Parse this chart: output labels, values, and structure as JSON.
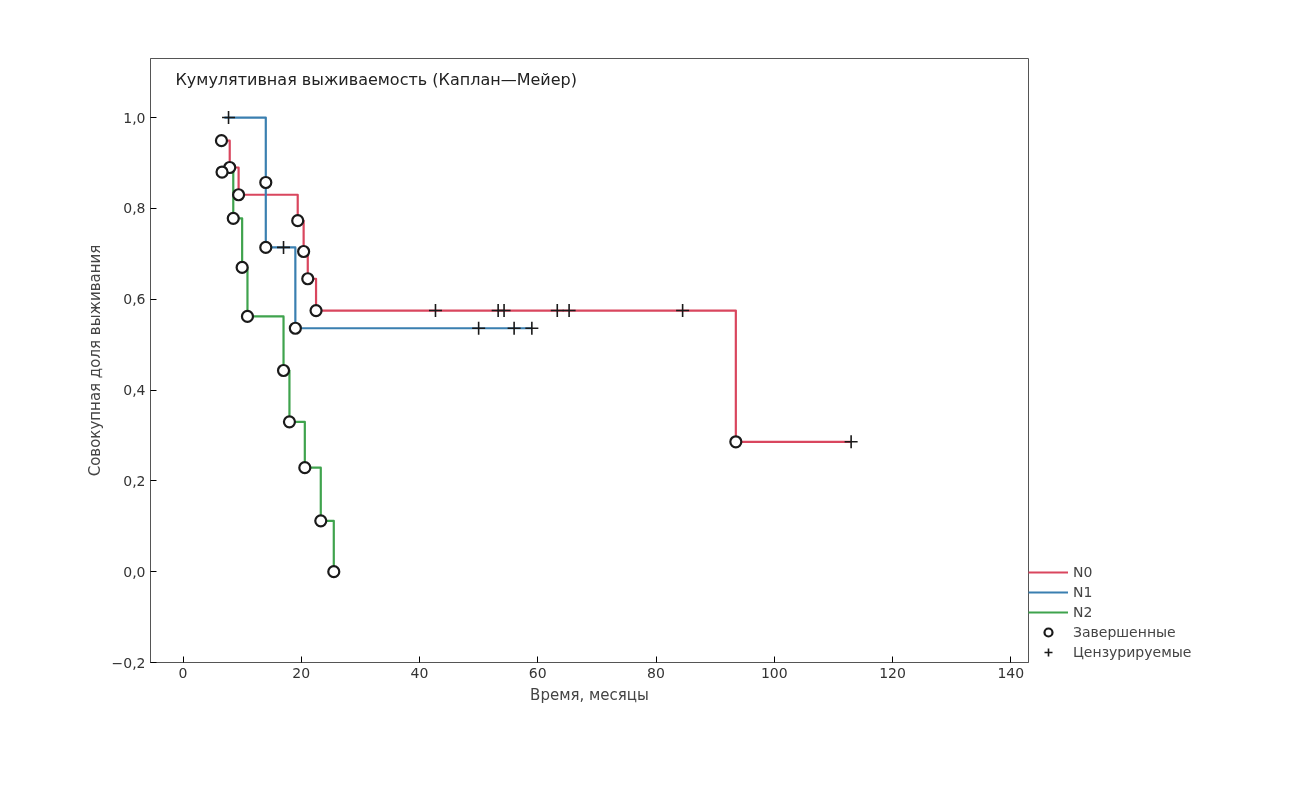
{
  "chart_data": {
    "type": "step",
    "title": "Кумулятивная выживаемость (Каплан—Мейер)",
    "xlabel": "Время, месяцы",
    "ylabel": "Совокупная доля выживания",
    "xlim": [
      -5.5,
      143
    ],
    "ylim": [
      -0.2,
      1.13
    ],
    "xticks": [
      0,
      20,
      40,
      60,
      80,
      100,
      120,
      140
    ],
    "yticks": [
      {
        "value": -0.2,
        "label": "−0,2"
      },
      {
        "value": 0,
        "label": "0,0"
      },
      {
        "value": 0.2,
        "label": "0,2"
      },
      {
        "value": 0.4,
        "label": "0,4"
      },
      {
        "value": 0.6,
        "label": "0,6"
      },
      {
        "value": 0.8,
        "label": "0,8"
      },
      {
        "value": 1.0,
        "label": "1,0"
      }
    ],
    "grid": false,
    "legend": "bottom right",
    "marker": "none",
    "series": [
      {
        "name": "N0",
        "color": "#d9465e",
        "x": [
          6.5,
          7.9,
          9.4,
          19.4,
          20.4,
          21.1,
          22.5,
          93.5,
          113
        ],
        "values": [
          0.949,
          0.89,
          0.83,
          0.773,
          0.705,
          0.645,
          0.575,
          0.286,
          0.286
        ]
      },
      {
        "name": "N1",
        "color": "#3a7fb0",
        "x": [
          7,
          14,
          14,
          19,
          59
        ],
        "values": [
          1.0,
          0.857,
          0.714,
          0.536,
          0.536
        ]
      },
      {
        "name": "N2",
        "color": "#3fa34d",
        "x": [
          6.6,
          8.5,
          10,
          10.9,
          17,
          18,
          20.6,
          23.3,
          25.5
        ],
        "values": [
          0.88,
          0.778,
          0.67,
          0.562,
          0.443,
          0.33,
          0.229,
          0.112,
          0.0
        ]
      },
      {
        "name": "Завершенные",
        "type": "scatter",
        "marker": "circle",
        "color": "#1a1a1a",
        "x": [
          6.5,
          7.9,
          9.4,
          19.4,
          20.4,
          21.1,
          22.5,
          93.5,
          6.6,
          8.5,
          10,
          10.9,
          17,
          18,
          20.6,
          23.3,
          25.5,
          14,
          14,
          19
        ],
        "values": [
          0.949,
          0.89,
          0.83,
          0.773,
          0.705,
          0.645,
          0.575,
          0.286,
          0.88,
          0.778,
          0.67,
          0.562,
          0.443,
          0.33,
          0.229,
          0.112,
          0.0,
          0.857,
          0.714,
          0.536
        ]
      },
      {
        "name": "Цензурируемые",
        "type": "scatter",
        "marker": "cross",
        "color": "#1a1a1a",
        "x": [
          7.7,
          17,
          50,
          56,
          59,
          42.7,
          53.3,
          54.3,
          63.3,
          65.3,
          84.5,
          113
        ],
        "values": [
          1.0,
          0.714,
          0.536,
          0.536,
          0.536,
          0.575,
          0.575,
          0.575,
          0.575,
          0.575,
          0.575,
          0.286
        ]
      }
    ]
  }
}
